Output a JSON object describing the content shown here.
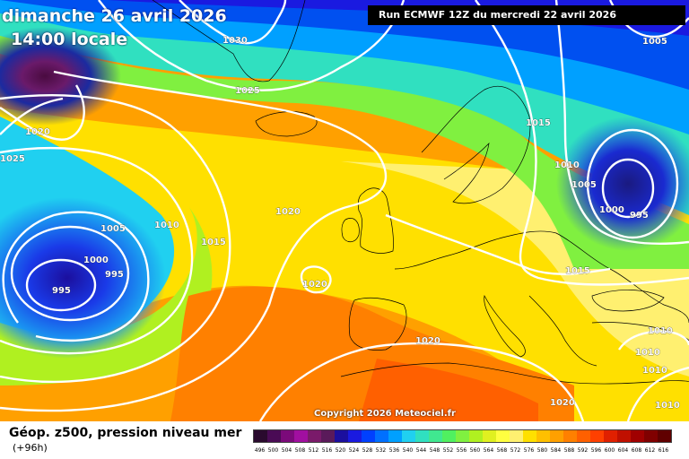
{
  "header": {
    "date": "dimanche 26 avril 2026",
    "time": "14:00 locale",
    "run": "Run ECMWF 12Z du mercredi 22 avril 2026"
  },
  "copyright": "Copyright 2026 Meteociel.fr",
  "footer": {
    "title": "Géop. z500, pression niveau mer",
    "lead_time": "(+96h)"
  },
  "legend": {
    "labels": [
      "496",
      "500",
      "504",
      "508",
      "512",
      "516",
      "520",
      "524",
      "528",
      "532",
      "536",
      "540",
      "544",
      "548",
      "552",
      "556",
      "560",
      "564",
      "568",
      "572",
      "576",
      "580",
      "584",
      "588",
      "592",
      "596",
      "600",
      "604",
      "608",
      "612",
      "616"
    ],
    "colors": [
      "#2a0a2e",
      "#4a0b55",
      "#7b0a7a",
      "#a10fa0",
      "#7a1a6a",
      "#5a1a5a",
      "#1b0f9e",
      "#1a1ae0",
      "#0040ff",
      "#0070ff",
      "#00a0ff",
      "#20d0f0",
      "#30e0c0",
      "#40e890",
      "#50f060",
      "#80f040",
      "#b0f020",
      "#e0f020",
      "#ffff40",
      "#fff070",
      "#ffe000",
      "#ffc000",
      "#ffa000",
      "#ff8000",
      "#ff6000",
      "#ff4000",
      "#e02000",
      "#c01000",
      "#a00000",
      "#800000",
      "#600000"
    ]
  },
  "isobars": {
    "labels": [
      "1030",
      "1025",
      "1020",
      "1025",
      "1005",
      "1010",
      "1000",
      "995",
      "995",
      "1015",
      "1020",
      "1020",
      "1020",
      "1015",
      "1010",
      "1005",
      "1000",
      "995",
      "1005",
      "1015",
      "1010",
      "1010",
      "1010",
      "1020",
      "1010"
    ]
  },
  "colors": {
    "isobar": "#ffffff",
    "land_outline": "#000000"
  }
}
